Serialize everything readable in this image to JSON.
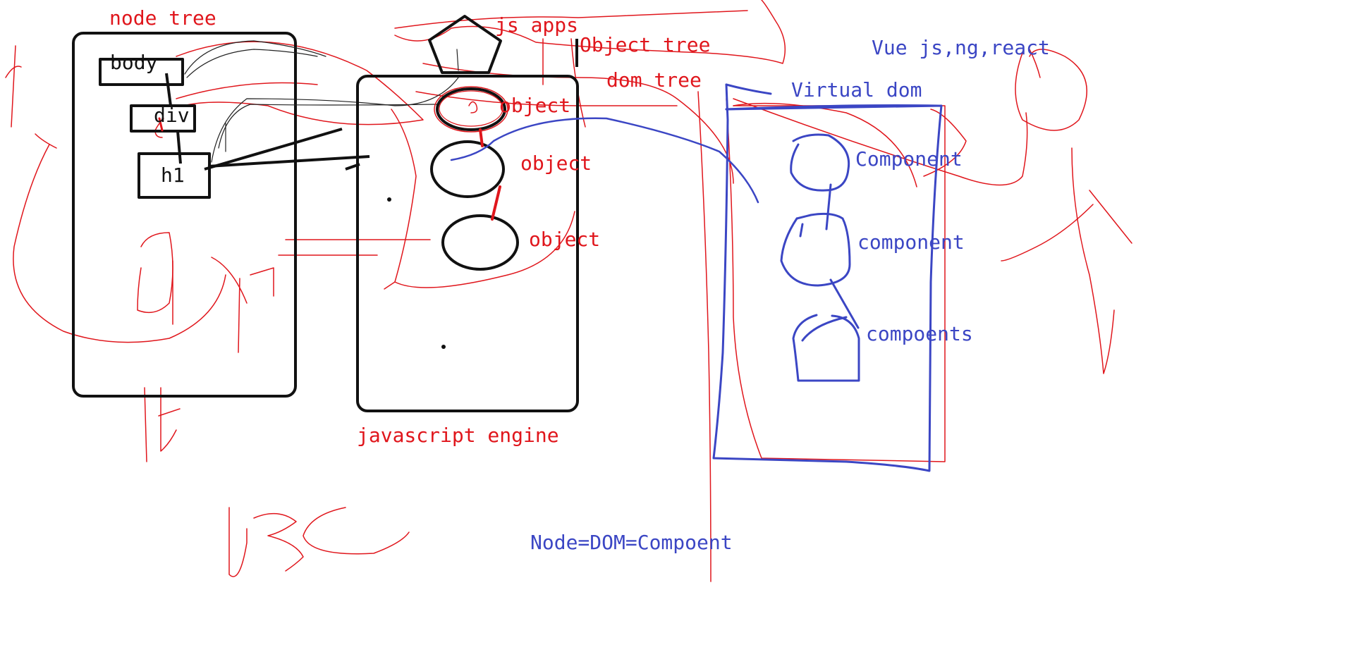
{
  "colors": {
    "red": "#e0161c",
    "blue": "#3b46c4",
    "black": "#111111"
  },
  "node_tree": {
    "title": "node tree",
    "nodes": [
      "body",
      "div",
      "h1"
    ]
  },
  "engine": {
    "top_label": "js apps",
    "bottom_label": "javascript engine",
    "object_labels": [
      "object",
      "object",
      "object"
    ]
  },
  "trees": {
    "object_tree": "Object tree",
    "dom_tree": "dom tree"
  },
  "virtual": {
    "frameworks": "Vue js,ng,react",
    "title": "Virtual dom",
    "components": [
      "Component",
      "component",
      "compoents"
    ]
  },
  "formula": "Node=DOM=Compoent"
}
